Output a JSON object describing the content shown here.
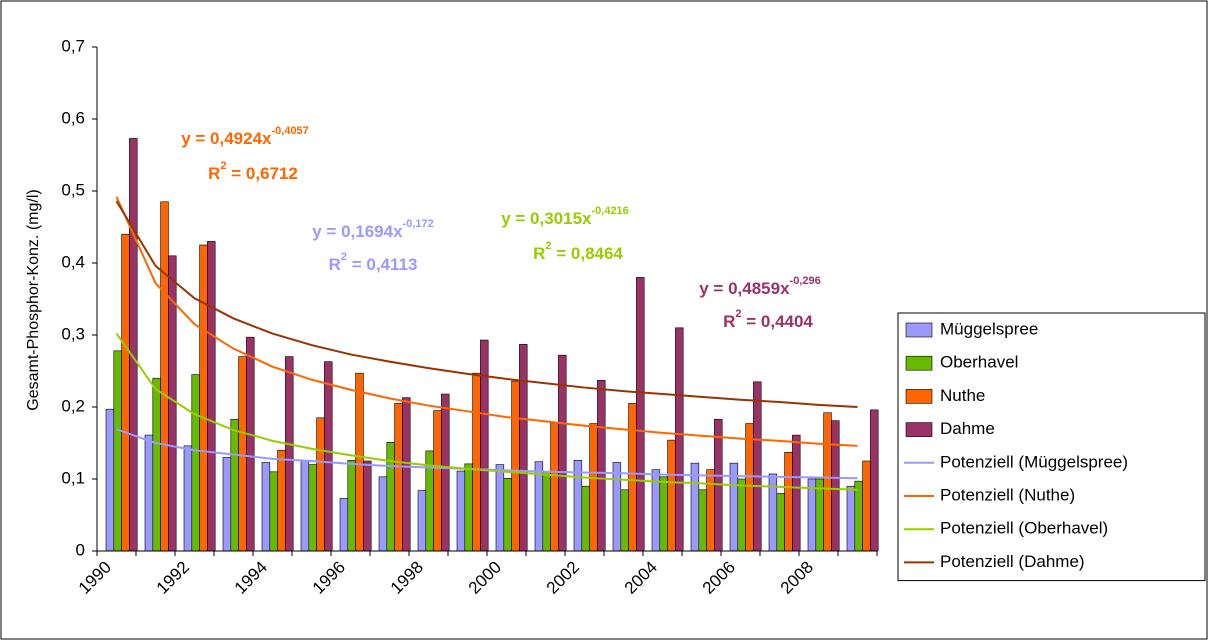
{
  "chart_data": {
    "type": "bar",
    "y_label": "Gesamt-Phosphor-Konz. (mg/l)",
    "categories": [
      "1990",
      null,
      "1992",
      null,
      "1994",
      null,
      "1996",
      null,
      "1998",
      null,
      "2000",
      null,
      "2002",
      null,
      "2004",
      null,
      "2006",
      null,
      "2008",
      null
    ],
    "ylim": [
      0,
      0.7
    ],
    "yticks": [
      0,
      {
        "value": 0.1,
        "label": "0,1"
      },
      {
        "value": 0.2,
        "label": "0,2"
      },
      {
        "value": 0.3,
        "label": "0,3"
      },
      {
        "value": 0.4,
        "label": "0,4"
      },
      {
        "value": 0.5,
        "label": "0,5"
      },
      {
        "value": 0.6,
        "label": "0,6"
      },
      {
        "value": 0.7,
        "label": "0,7"
      }
    ],
    "grid": false,
    "legend": "right",
    "series": [
      {
        "name": "Müggelspree",
        "type": "bar",
        "color": "#9999ff",
        "values": [
          0.197,
          0.161,
          0.146,
          0.13,
          0.123,
          0.126,
          0.073,
          0.103,
          0.084,
          0.111,
          0.12,
          0.124,
          0.126,
          0.123,
          0.113,
          0.122,
          0.122,
          0.107,
          0.1,
          0.09
        ]
      },
      {
        "name": "Oberhavel",
        "type": "bar",
        "color": "#66bb00",
        "values": [
          0.278,
          0.24,
          0.245,
          0.183,
          0.11,
          0.12,
          0.126,
          0.151,
          0.139,
          0.121,
          0.101,
          0.11,
          0.09,
          0.085,
          0.103,
          0.085,
          0.1,
          0.08,
          0.1,
          0.097
        ]
      },
      {
        "name": "Nuthe",
        "type": "bar",
        "color": "#ff6600",
        "values": [
          0.44,
          0.485,
          0.425,
          0.27,
          0.14,
          0.185,
          0.247,
          0.205,
          0.195,
          0.247,
          0.236,
          0.178,
          0.177,
          0.205,
          0.154,
          0.113,
          0.177,
          0.137,
          0.192,
          0.125
        ]
      },
      {
        "name": "Dahme",
        "type": "bar",
        "color": "#993366",
        "values": [
          0.573,
          0.41,
          0.43,
          0.297,
          0.27,
          0.263,
          0.125,
          0.213,
          0.218,
          0.293,
          0.287,
          0.272,
          0.237,
          0.38,
          0.31,
          0.183,
          0.235,
          0.161,
          0.181,
          0.196
        ]
      },
      {
        "name": "Potenziell (Müggelspree)",
        "type": "line",
        "color": "#9999ff",
        "values": [
          0.169,
          0.15,
          0.14,
          0.134,
          0.128,
          0.125,
          0.121,
          0.118,
          0.116,
          0.114,
          0.112,
          0.11,
          0.109,
          0.108,
          0.106,
          0.105,
          0.104,
          0.103,
          0.102,
          0.101
        ]
      },
      {
        "name": "Potenziell (Nuthe)",
        "type": "line",
        "color": "#ff6600",
        "values": [
          0.492,
          0.372,
          0.315,
          0.281,
          0.256,
          0.238,
          0.224,
          0.212,
          0.202,
          0.194,
          0.186,
          0.18,
          0.174,
          0.169,
          0.164,
          0.16,
          0.156,
          0.153,
          0.149,
          0.146
        ]
      },
      {
        "name": "Potenziell (Oberhavel)",
        "type": "line",
        "color": "#99cc00",
        "values": [
          0.302,
          0.225,
          0.19,
          0.168,
          0.153,
          0.142,
          0.133,
          0.125,
          0.119,
          0.114,
          0.11,
          0.106,
          0.102,
          0.099,
          0.096,
          0.094,
          0.091,
          0.089,
          0.087,
          0.085
        ]
      },
      {
        "name": "Potenziell (Dahme)",
        "type": "line",
        "color": "#993300",
        "values": [
          0.486,
          0.396,
          0.351,
          0.323,
          0.302,
          0.286,
          0.273,
          0.263,
          0.254,
          0.246,
          0.239,
          0.233,
          0.227,
          0.222,
          0.218,
          0.214,
          0.21,
          0.207,
          0.203,
          0.2
        ]
      }
    ],
    "annotations": [
      {
        "equation": "y = 0,4924x",
        "exponent": "-0,4057",
        "r": "R",
        "r_sup": "2",
        "r_value": " = 0,6712",
        "color": "#ff6600"
      },
      {
        "equation": "y = 0,1694x",
        "exponent": "-0,172",
        "r": "R",
        "r_sup": "2",
        "r_value": " = 0,4113",
        "color": "#9999ff"
      },
      {
        "equation": "y = 0,3015x",
        "exponent": "-0,4216",
        "r": "R",
        "r_sup": "2",
        "r_value": " = 0,8464",
        "color": "#99cc00"
      },
      {
        "equation": "y = 0,4859x",
        "exponent": "-0,296",
        "r": "R",
        "r_sup": "2",
        "r_value": " = 0,4404",
        "color": "#993366"
      }
    ]
  }
}
